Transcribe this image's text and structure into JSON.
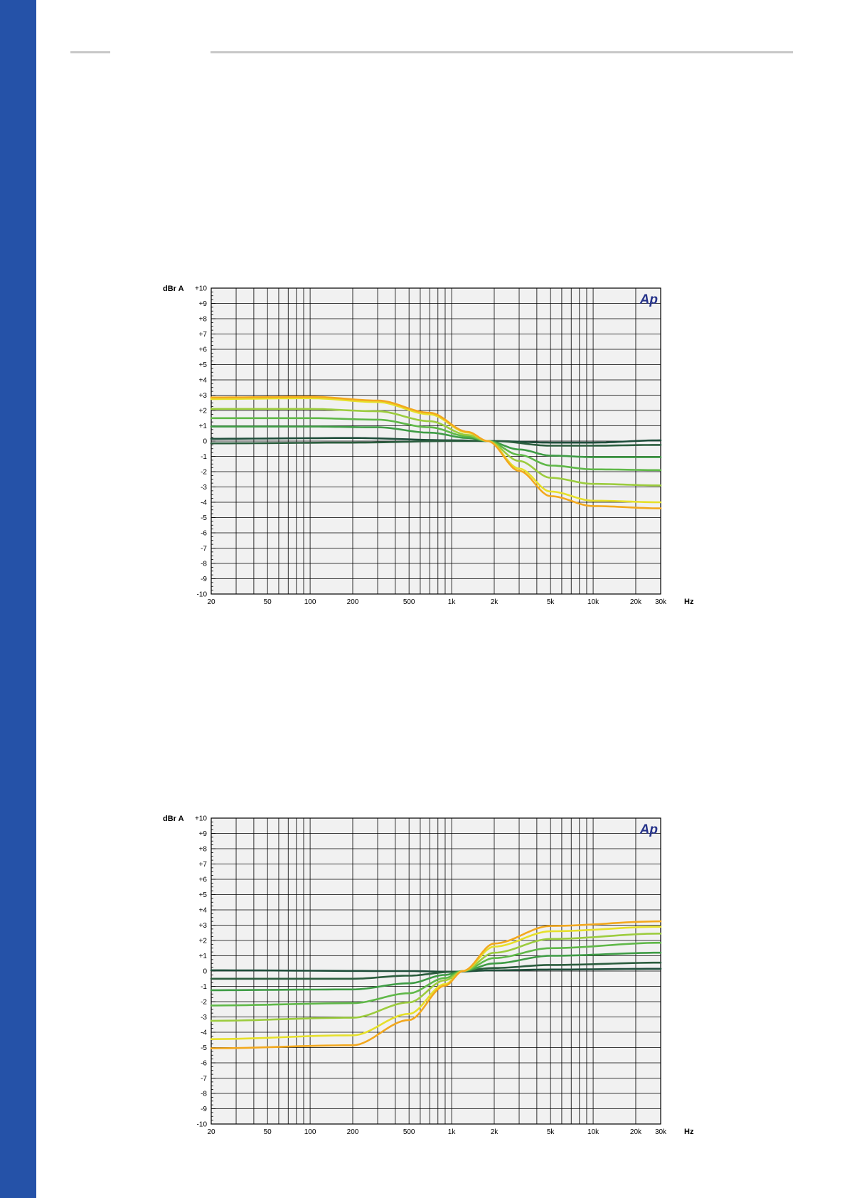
{
  "chart_data": [
    {
      "type": "line",
      "ylabel": "dBr A",
      "xlabel": "Hz",
      "xscale": "log",
      "xlim": [
        20,
        30000
      ],
      "ylim": [
        -10,
        10
      ],
      "grid": true,
      "legend": "none",
      "x_tick_labels": [
        "20",
        "50",
        "100",
        "200",
        "500",
        "1k",
        "2k",
        "5k",
        "10k",
        "20k",
        "30k"
      ],
      "y_tick_labels": [
        "+10",
        "+9",
        "+8",
        "+7",
        "+6",
        "+5",
        "+4",
        "+3",
        "+2",
        "+1",
        "0",
        "-1",
        "-2",
        "-3",
        "-4",
        "-5",
        "-6",
        "-7",
        "-8",
        "-9",
        "-10"
      ],
      "logo_text": "Ap",
      "series": [
        {
          "color": "#1e4d3a",
          "points": [
            [
              20,
              0.15
            ],
            [
              200,
              0.2
            ],
            [
              1000,
              0.05
            ],
            [
              2000,
              0
            ],
            [
              5000,
              -0.1
            ],
            [
              10000,
              -0.1
            ],
            [
              30000,
              0.05
            ]
          ]
        },
        {
          "color": "#2b5d3e",
          "points": [
            [
              20,
              -0.15
            ],
            [
              200,
              -0.1
            ],
            [
              1000,
              0
            ],
            [
              2000,
              0
            ],
            [
              5000,
              -0.3
            ],
            [
              10000,
              -0.3
            ],
            [
              30000,
              -0.25
            ]
          ]
        },
        {
          "color": "#3e9c45",
          "points": [
            [
              20,
              0.95
            ],
            [
              100,
              0.95
            ],
            [
              300,
              0.9
            ],
            [
              700,
              0.55
            ],
            [
              1300,
              0.2
            ],
            [
              1800,
              0
            ],
            [
              3000,
              -0.55
            ],
            [
              5000,
              -0.95
            ],
            [
              10000,
              -1.05
            ],
            [
              30000,
              -1.05
            ]
          ]
        },
        {
          "color": "#5fb848",
          "points": [
            [
              20,
              1.5
            ],
            [
              100,
              1.5
            ],
            [
              300,
              1.4
            ],
            [
              700,
              0.9
            ],
            [
              1300,
              0.3
            ],
            [
              1800,
              0
            ],
            [
              3000,
              -0.9
            ],
            [
              5000,
              -1.6
            ],
            [
              10000,
              -1.85
            ],
            [
              30000,
              -1.9
            ]
          ]
        },
        {
          "color": "#9ccc3e",
          "points": [
            [
              20,
              2.1
            ],
            [
              100,
              2.1
            ],
            [
              300,
              1.95
            ],
            [
              700,
              1.3
            ],
            [
              1300,
              0.4
            ],
            [
              1800,
              0
            ],
            [
              3000,
              -1.3
            ],
            [
              5000,
              -2.4
            ],
            [
              10000,
              -2.8
            ],
            [
              30000,
              -2.9
            ]
          ]
        },
        {
          "color": "#e6e02a",
          "points": [
            [
              20,
              2.75
            ],
            [
              100,
              2.8
            ],
            [
              300,
              2.55
            ],
            [
              700,
              1.75
            ],
            [
              1300,
              0.55
            ],
            [
              1800,
              0
            ],
            [
              3000,
              -1.8
            ],
            [
              5000,
              -3.3
            ],
            [
              10000,
              -3.9
            ],
            [
              30000,
              -4.0
            ]
          ]
        },
        {
          "color": "#f2a81e",
          "points": [
            [
              20,
              2.85
            ],
            [
              100,
              2.9
            ],
            [
              300,
              2.65
            ],
            [
              700,
              1.85
            ],
            [
              1300,
              0.6
            ],
            [
              1800,
              0
            ],
            [
              3000,
              -1.95
            ],
            [
              5000,
              -3.6
            ],
            [
              10000,
              -4.25
            ],
            [
              30000,
              -4.4
            ]
          ]
        }
      ]
    },
    {
      "type": "line",
      "ylabel": "dBr A",
      "xlabel": "Hz",
      "xscale": "log",
      "xlim": [
        20,
        30000
      ],
      "ylim": [
        -10,
        10
      ],
      "grid": true,
      "legend": "none",
      "x_tick_labels": [
        "20",
        "50",
        "100",
        "200",
        "500",
        "1k",
        "2k",
        "5k",
        "10k",
        "20k",
        "30k"
      ],
      "y_tick_labels": [
        "+10",
        "+9",
        "+8",
        "+7",
        "+6",
        "+5",
        "+4",
        "+3",
        "+2",
        "+1",
        "0",
        "-1",
        "-2",
        "-3",
        "-4",
        "-5",
        "-6",
        "-7",
        "-8",
        "-9",
        "-10"
      ],
      "logo_text": "Ap",
      "series": [
        {
          "color": "#1e4d3a",
          "points": [
            [
              20,
              0.05
            ],
            [
              500,
              0.0
            ],
            [
              1000,
              -0.05
            ],
            [
              2000,
              0.05
            ],
            [
              5000,
              0.1
            ],
            [
              30000,
              0.15
            ]
          ]
        },
        {
          "color": "#2b5d3e",
          "points": [
            [
              20,
              -0.5
            ],
            [
              200,
              -0.5
            ],
            [
              500,
              -0.3
            ],
            [
              1000,
              -0.05
            ],
            [
              2000,
              0.2
            ],
            [
              5000,
              0.4
            ],
            [
              30000,
              0.55
            ]
          ]
        },
        {
          "color": "#3e9c45",
          "points": [
            [
              20,
              -1.25
            ],
            [
              200,
              -1.2
            ],
            [
              500,
              -0.8
            ],
            [
              900,
              -0.25
            ],
            [
              1200,
              0
            ],
            [
              2000,
              0.5
            ],
            [
              5000,
              1.0
            ],
            [
              30000,
              1.2
            ]
          ]
        },
        {
          "color": "#5fb848",
          "points": [
            [
              20,
              -2.25
            ],
            [
              200,
              -2.1
            ],
            [
              500,
              -1.45
            ],
            [
              900,
              -0.45
            ],
            [
              1200,
              0
            ],
            [
              2000,
              0.85
            ],
            [
              5000,
              1.5
            ],
            [
              30000,
              1.85
            ]
          ]
        },
        {
          "color": "#9ccc3e",
          "points": [
            [
              20,
              -3.25
            ],
            [
              200,
              -3.05
            ],
            [
              500,
              -2.05
            ],
            [
              900,
              -0.6
            ],
            [
              1200,
              0
            ],
            [
              2000,
              1.2
            ],
            [
              5000,
              2.1
            ],
            [
              30000,
              2.45
            ]
          ]
        },
        {
          "color": "#e6e02a",
          "points": [
            [
              20,
              -4.45
            ],
            [
              200,
              -4.2
            ],
            [
              500,
              -2.8
            ],
            [
              900,
              -0.85
            ],
            [
              1200,
              0
            ],
            [
              2000,
              1.6
            ],
            [
              5000,
              2.6
            ],
            [
              30000,
              2.9
            ]
          ]
        },
        {
          "color": "#f2a81e",
          "points": [
            [
              20,
              -5.05
            ],
            [
              200,
              -4.85
            ],
            [
              500,
              -3.2
            ],
            [
              900,
              -0.95
            ],
            [
              1200,
              0
            ],
            [
              2000,
              1.8
            ],
            [
              5000,
              2.95
            ],
            [
              30000,
              3.25
            ]
          ]
        }
      ]
    }
  ]
}
